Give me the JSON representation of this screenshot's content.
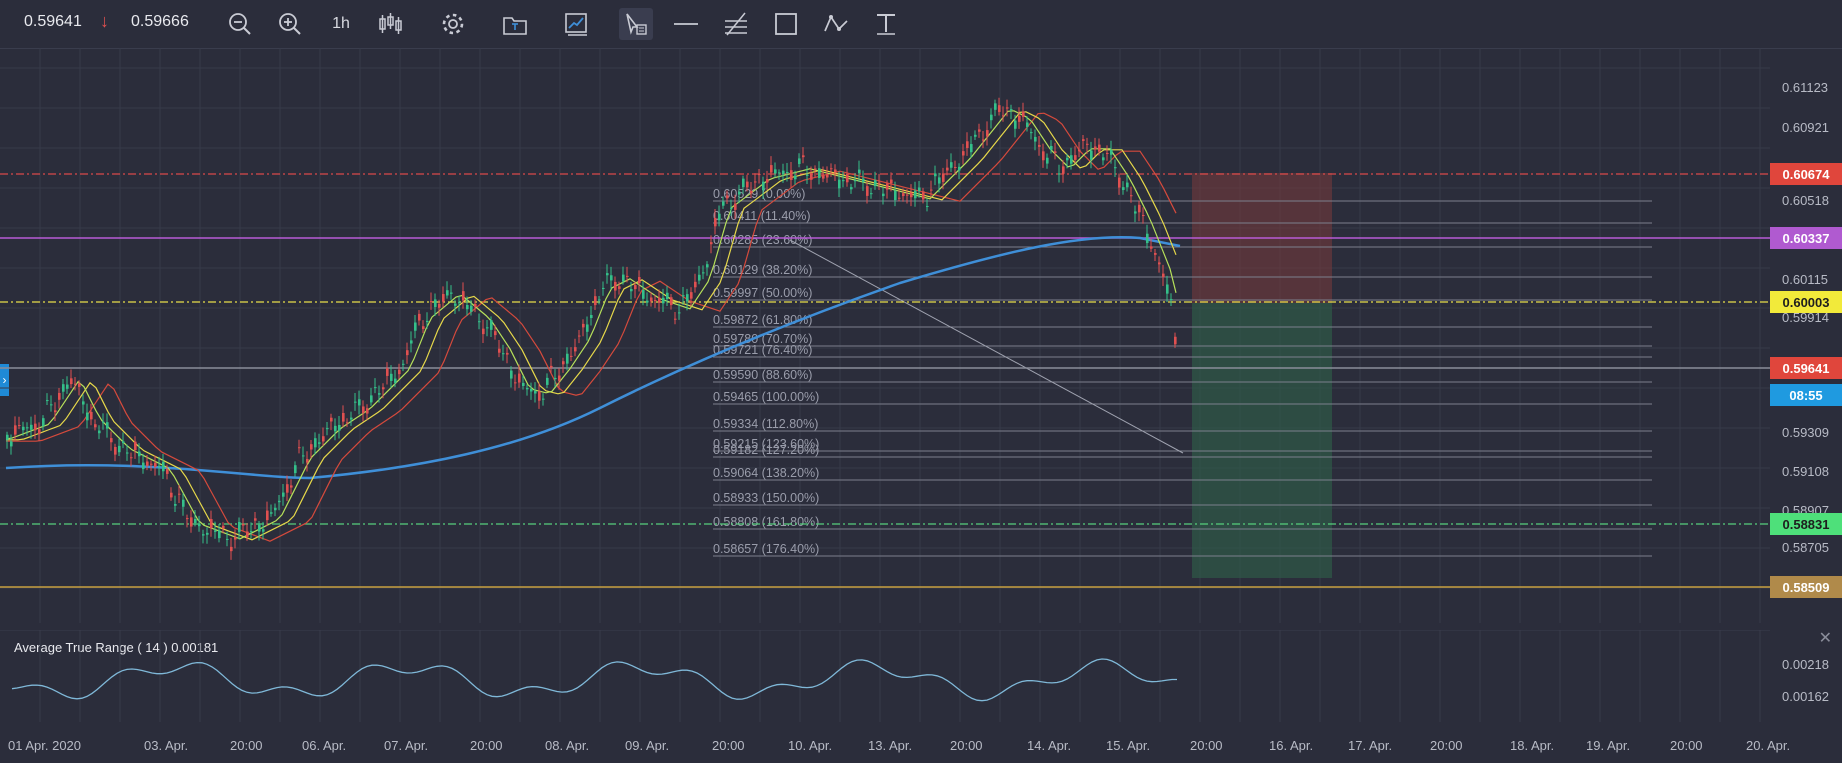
{
  "toolbar": {
    "bid": "0.59641",
    "ask": "0.59666",
    "timeframe": "1h",
    "tools": [
      "zoom-out-icon",
      "zoom-in-icon",
      "candles-icon",
      "gear-icon",
      "folder-icon",
      "chart-image-icon",
      "cursor-icon",
      "horizontal-line-icon",
      "parallel-channel-icon",
      "rectangle-icon",
      "path-icon",
      "text-icon"
    ]
  },
  "colors": {
    "background": "#2b2d3b",
    "grid": "#373a4a",
    "up_candle": "#34c08a",
    "down_candle": "#e05050",
    "ema_fast": "#b6e05a",
    "ema_mid": "#e6d84a",
    "ema_slow": "#d54a3c",
    "sma_long": "#3f8fd8",
    "atr_line": "#7fb8d8"
  },
  "y_axis": {
    "ticks": [
      "0.61123",
      "0.60921",
      "0.60720",
      "0.60518",
      "0.60115",
      "0.59914",
      "0.59309",
      "0.59108",
      "0.58907",
      "0.58705"
    ]
  },
  "x_axis": {
    "ticks": [
      "01 Apr. 2020",
      "03. Apr.",
      "20:00",
      "06. Apr.",
      "07. Apr.",
      "20:00",
      "08. Apr.",
      "09. Apr.",
      "20:00",
      "10. Apr.",
      "13. Apr.",
      "20:00",
      "14. Apr.",
      "15. Apr.",
      "20:00",
      "16. Apr.",
      "17. Apr.",
      "20:00",
      "18. Apr.",
      "19. Apr.",
      "20:00",
      "20. Apr."
    ]
  },
  "price_levels": [
    {
      "label": "0.60674",
      "bg": "#e0463c",
      "fg": "#ffffff",
      "line": "#d94a4a",
      "style": "dashdot"
    },
    {
      "label": "0.60337",
      "bg": "#b05ad0",
      "fg": "#ffffff",
      "line": "#b85bd6",
      "style": "solid"
    },
    {
      "label": "0.60003",
      "bg": "#f2ea3a",
      "fg": "#1e1e1e",
      "line": "#e8e04a",
      "style": "dashdot"
    },
    {
      "label": "0.59641",
      "bg": "#e0463c",
      "fg": "#ffffff",
      "line": "#8a8d9a",
      "style": "solid"
    },
    {
      "label": "0.58831",
      "bg": "#4ee07a",
      "fg": "#1e1e1e",
      "line": "#56d07c",
      "style": "dashdot"
    },
    {
      "label": "0.58509",
      "bg": "#b08a4a",
      "fg": "#ffffff",
      "line": "#c8a040",
      "style": "solid"
    }
  ],
  "countdown": "08:55",
  "fibonacci": [
    "0.60529 (0.00%)",
    "0.60411 (11.40%)",
    "0.60285 (23.60%)",
    "0.60129 (38.20%)",
    "0.59997 (50.00%)",
    "0.59872 (61.80%)",
    "0.59780 (70.70%)",
    "0.59721 (76.40%)",
    "0.59590 (88.60%)",
    "0.59465 (100.00%)",
    "0.59334 (112.80%)",
    "0.59215 (123.60%)",
    "0.59182 (127.20%)",
    "0.59064 (138.20%)",
    "0.58933 (150.00%)",
    "0.58808 (161.80%)",
    "0.58657 (176.40%)"
  ],
  "atr": {
    "title": "Average True Range ( 14 ) 0.00181",
    "ticks": [
      "0.00218",
      "0.00162"
    ]
  }
}
